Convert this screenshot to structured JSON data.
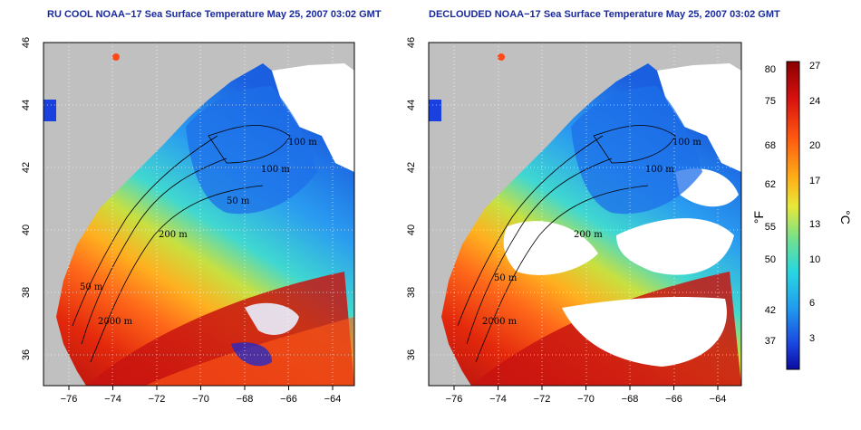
{
  "titles": {
    "left": "RU COOL NOAA−17 Sea Surface Temperature May 25, 2007 03:02 GMT",
    "right": "DECLOUDED NOAA−17 Sea Surface Temperature May 25, 2007 03:02 GMT"
  },
  "axes": {
    "lon_ticks": [
      "−76",
      "−74",
      "−72",
      "−70",
      "−68",
      "−66",
      "−64"
    ],
    "lat_ticks": [
      "46",
      "44",
      "42",
      "40",
      "38",
      "36"
    ]
  },
  "contour_labels": {
    "left": [
      "100 m",
      "100 m",
      "50 m",
      "200 m",
      "50 m",
      "2000 m"
    ],
    "right": [
      "100 m",
      "100 m",
      "200 m",
      "50 m",
      "2000 m"
    ]
  },
  "colorbar": {
    "fahrenheit_ticks": [
      "80",
      "75",
      "68",
      "62",
      "55",
      "50",
      "42",
      "37"
    ],
    "celsius_ticks": [
      "27",
      "24",
      "20",
      "17",
      "13",
      "10",
      "6",
      "3"
    ],
    "fahrenheit_unit": "°F",
    "celsius_unit": "°C"
  },
  "colors": {
    "title": "#1a2a9c",
    "land": "#c0c0c0",
    "cloud": "#ffffff",
    "warm": "#b81010",
    "mid_warm": "#ff5a1e",
    "moderate": "#ffd21e",
    "cool": "#46d2c8",
    "cold": "#1e78f0"
  }
}
